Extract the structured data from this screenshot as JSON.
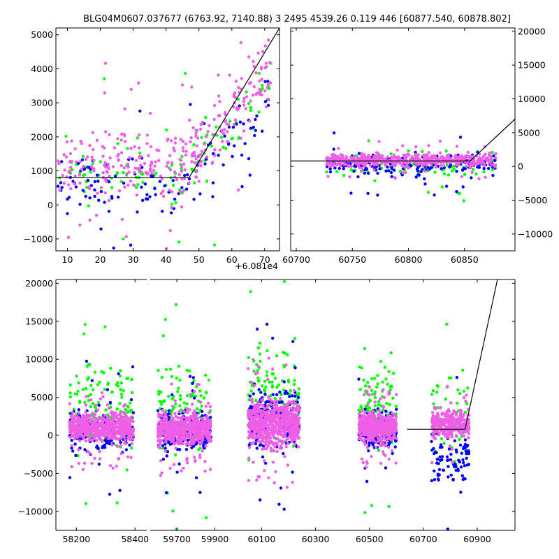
{
  "title": "BLG04M0607.037677 (6763.92, 7140.88)   3 2495 4539.26 0.119 446 [60877.540, 60878.802]",
  "colors": {
    "green": "#00ff00",
    "blue": "#0000ff",
    "pink": "#ee5ee6",
    "line": "#000000",
    "axis": "#000000"
  },
  "chart_data": [
    {
      "id": "top-left",
      "type": "scatter",
      "xlim": [
        6.5,
        74.5
      ],
      "ylim": [
        -1350,
        5200
      ],
      "xticks": [
        10,
        20,
        30,
        40,
        50,
        60,
        70
      ],
      "yticks": [
        -1000,
        0,
        1000,
        2000,
        3000,
        4000,
        5000
      ],
      "x_offset_label": "+6.081e4",
      "y_axis_side": "left",
      "model_line": [
        [
          6.5,
          800
        ],
        [
          47,
          800
        ],
        [
          74.5,
          5200
        ]
      ],
      "series": [
        {
          "name": "green",
          "color": "#00ff00",
          "seed": 11,
          "segments": [
            {
              "x": [
                7,
                72
              ],
              "y": [
                -500,
                2200
              ],
              "n": 110,
              "trend": [
                [
                  45,
                  0
                ],
                [
                  72,
                  2600
                ]
              ]
            }
          ]
        },
        {
          "name": "blue",
          "color": "#0000ff",
          "seed": 12,
          "segments": [
            {
              "x": [
                7,
                72
              ],
              "y": [
                -600,
                1800
              ],
              "n": 130,
              "trend": [
                [
                  45,
                  0
                ],
                [
                  72,
                  2400
                ]
              ]
            }
          ]
        },
        {
          "name": "pink",
          "color": "#ee5ee6",
          "seed": 13,
          "segments": [
            {
              "x": [
                7,
                72
              ],
              "y": [
                -300,
                2500
              ],
              "n": 320,
              "trend": [
                [
                  45,
                  0
                ],
                [
                  72,
                  3000
                ]
              ]
            }
          ]
        }
      ]
    },
    {
      "id": "top-right",
      "type": "scatter",
      "xlim": [
        60695,
        60895
      ],
      "ylim": [
        -12500,
        20500
      ],
      "xticks": [
        60700,
        60750,
        60800,
        60850
      ],
      "yticks": [
        -10000,
        -5000,
        0,
        5000,
        10000,
        15000,
        20000
      ],
      "y_axis_side": "right",
      "model_line": [
        [
          60695,
          800
        ],
        [
          60855,
          800
        ],
        [
          60895,
          7000
        ]
      ],
      "series": [
        {
          "name": "green",
          "color": "#00ff00",
          "seed": 21,
          "segments": [
            {
              "x": [
                60727,
                60878
              ],
              "y": [
                -2500,
                3500
              ],
              "n": 90
            }
          ]
        },
        {
          "name": "blue",
          "color": "#0000ff",
          "seed": 22,
          "segments": [
            {
              "x": [
                60727,
                60878
              ],
              "y": [
                -2000,
                2500
              ],
              "n": 180
            }
          ]
        },
        {
          "name": "pink",
          "color": "#ee5ee6",
          "seed": 23,
          "segments": [
            {
              "x": [
                60727,
                60878
              ],
              "y": [
                -400,
                2200
              ],
              "n": 520
            }
          ]
        }
      ]
    },
    {
      "id": "bottom",
      "type": "scatter",
      "ylim": [
        -12500,
        20500
      ],
      "yticks": [
        -10000,
        -5000,
        0,
        5000,
        10000,
        15000,
        20000
      ],
      "y_axis_side": "left",
      "x_segments": [
        {
          "xlim": [
            58130,
            58440
          ],
          "xticks": [
            58200,
            58400
          ]
        },
        {
          "xlim": [
            59560,
            59990
          ],
          "xticks": [
            59700,
            59900
          ]
        },
        {
          "xlim": [
            59990,
            61040
          ],
          "xticks": [
            60100,
            60300,
            60500,
            60700,
            60900
          ]
        }
      ],
      "model_line": [
        [
          60640,
          800
        ],
        [
          60855,
          800
        ],
        [
          60975,
          20500
        ]
      ],
      "series": [
        {
          "name": "green",
          "color": "#00ff00",
          "seed": 31,
          "segments": [
            {
              "x": [
                58175,
                58395
              ],
              "y": [
                -4000,
                12000
              ],
              "n": 120
            },
            {
              "x": [
                59600,
                59880
              ],
              "y": [
                -4000,
                11000
              ],
              "n": 110
            },
            {
              "x": [
                60050,
                60240
              ],
              "y": [
                -4000,
                14000
              ],
              "n": 130
            },
            {
              "x": [
                60460,
                60600
              ],
              "y": [
                -4000,
                12000
              ],
              "n": 100
            },
            {
              "x": [
                60730,
                60870
              ],
              "y": [
                -6000,
                12000
              ],
              "n": 40
            }
          ]
        },
        {
          "name": "blue",
          "color": "#0000ff",
          "seed": 32,
          "segments": [
            {
              "x": [
                58175,
                58395
              ],
              "y": [
                -4000,
                5000
              ],
              "n": 160
            },
            {
              "x": [
                59600,
                59880
              ],
              "y": [
                -3500,
                4000
              ],
              "n": 200
            },
            {
              "x": [
                60050,
                60240
              ],
              "y": [
                -3500,
                8000
              ],
              "n": 210
            },
            {
              "x": [
                60460,
                60600
              ],
              "y": [
                -3000,
                4500
              ],
              "n": 170
            },
            {
              "x": [
                60730,
                60870
              ],
              "y": [
                -8000,
                2000
              ],
              "n": 90
            }
          ]
        },
        {
          "name": "pink",
          "color": "#ee5ee6",
          "seed": 33,
          "segments": [
            {
              "x": [
                58175,
                58395
              ],
              "y": [
                -1500,
                3500
              ],
              "n": 650
            },
            {
              "x": [
                59600,
                59880
              ],
              "y": [
                -2000,
                3500
              ],
              "n": 650
            },
            {
              "x": [
                60050,
                60240
              ],
              "y": [
                -2500,
                5500
              ],
              "n": 700
            },
            {
              "x": [
                60460,
                60600
              ],
              "y": [
                -1500,
                3500
              ],
              "n": 620
            },
            {
              "x": [
                60730,
                60870
              ],
              "y": [
                -1000,
                4000
              ],
              "n": 320
            }
          ]
        }
      ]
    }
  ]
}
